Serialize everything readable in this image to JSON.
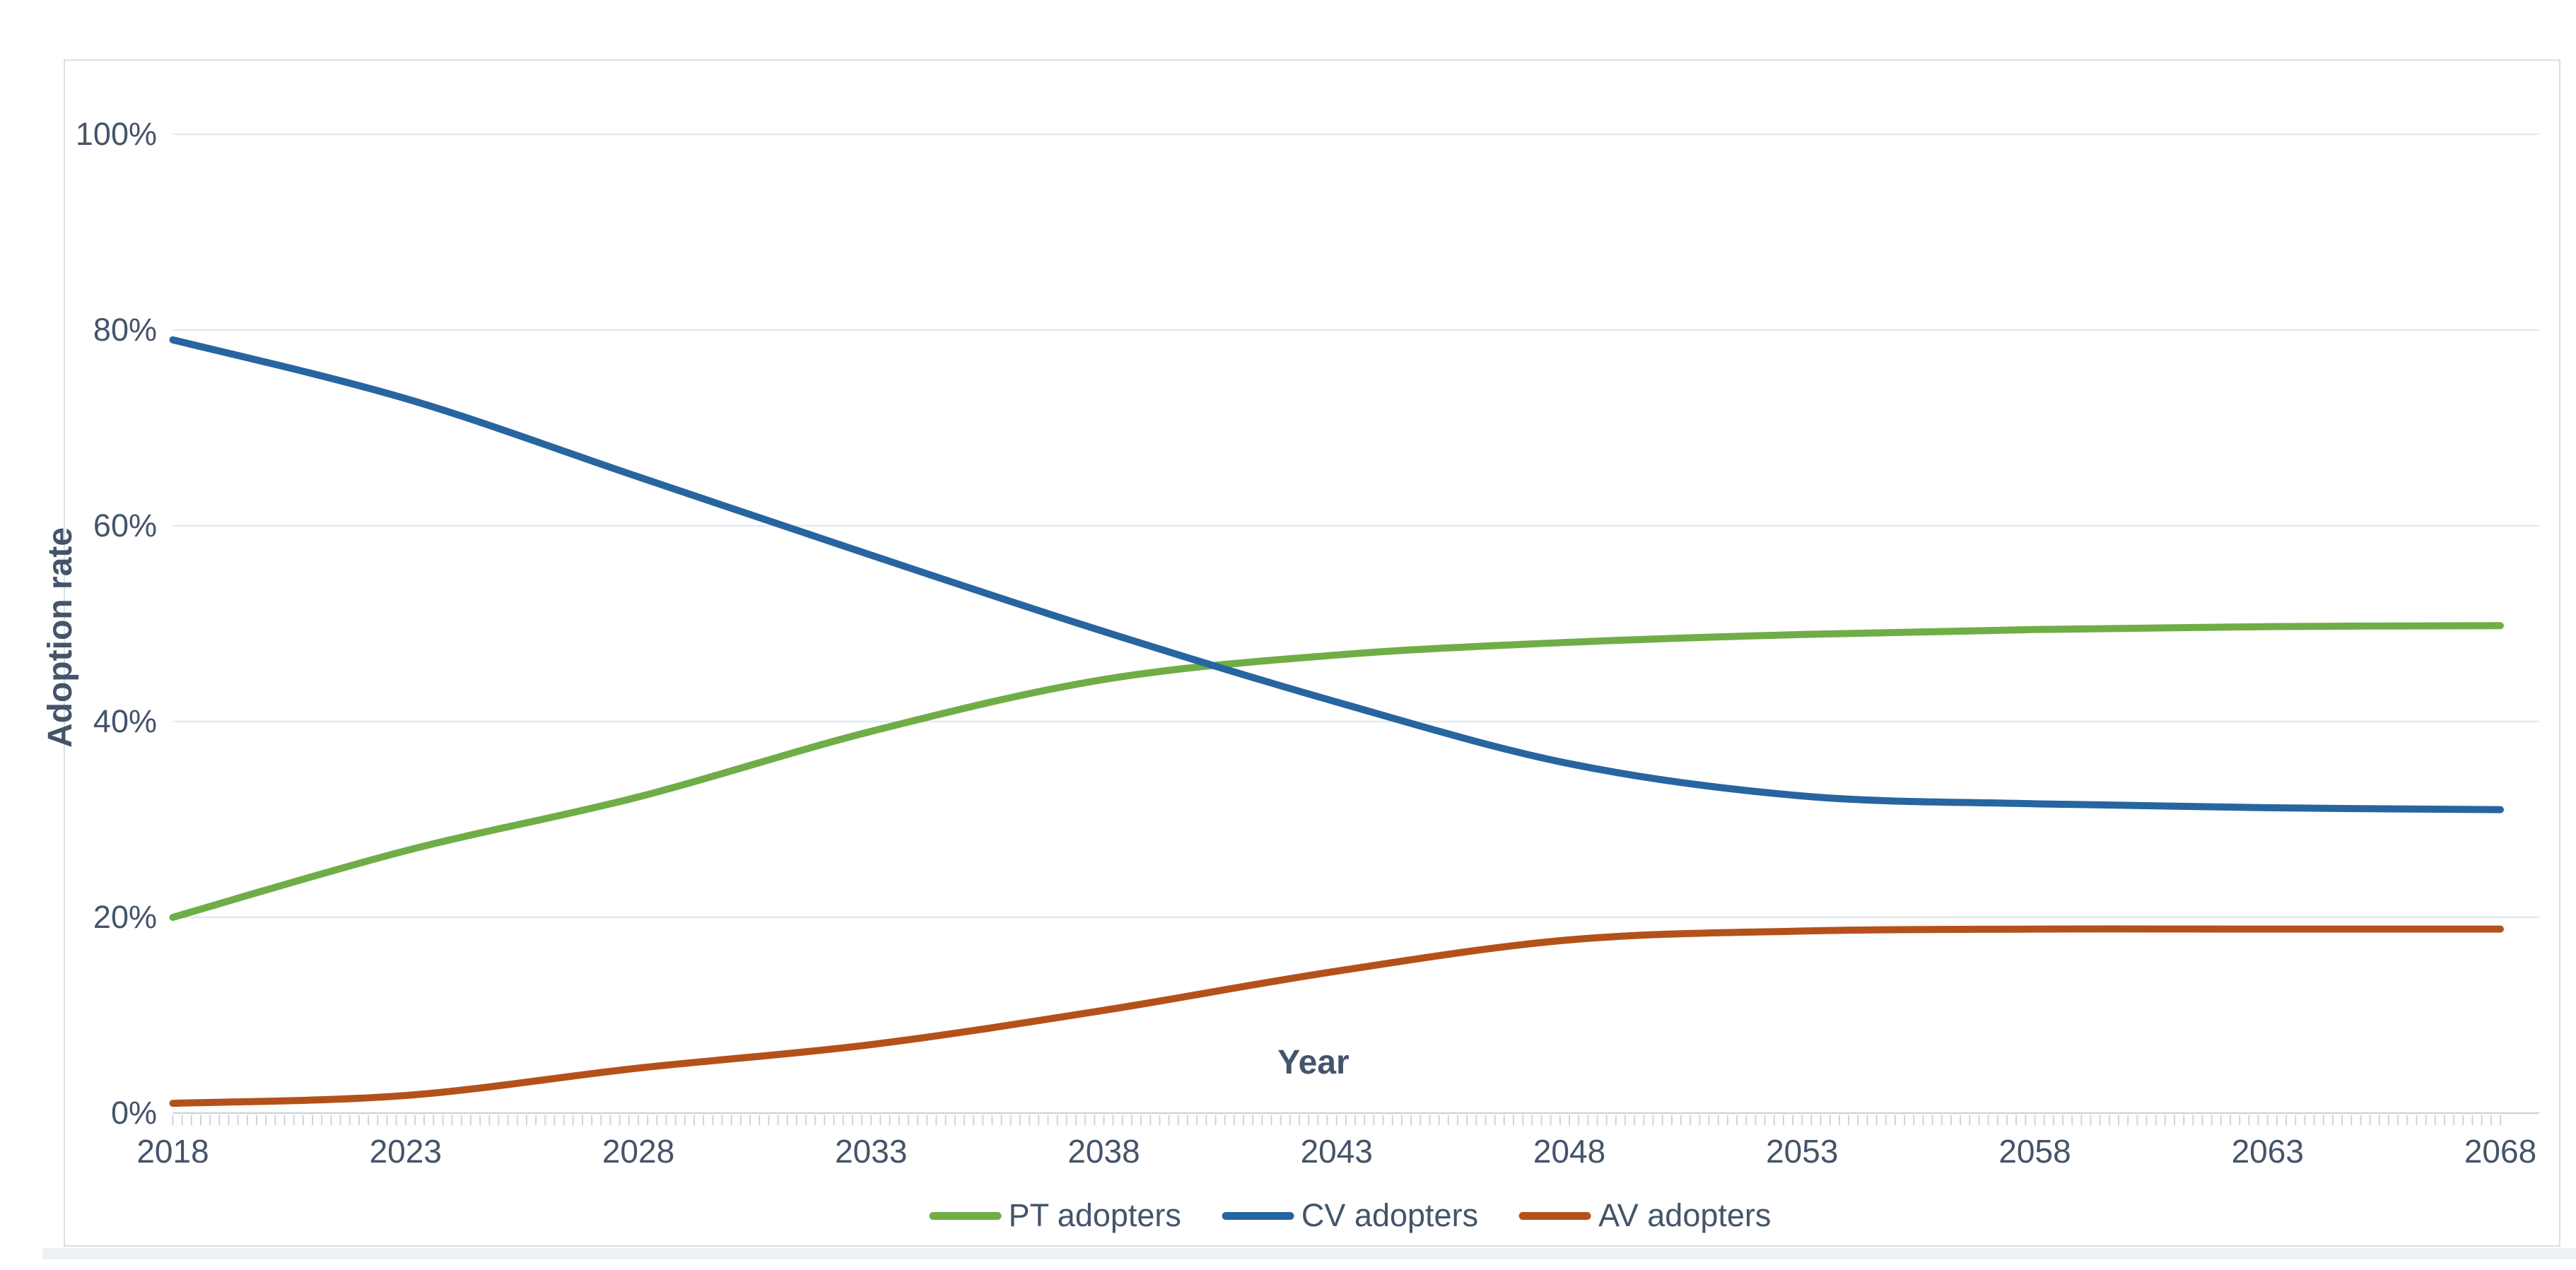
{
  "chart_data": {
    "type": "line",
    "title": "",
    "xlabel": "Year",
    "ylabel": "Adoption rate",
    "x": [
      2018,
      2023,
      2028,
      2033,
      2038,
      2043,
      2048,
      2053,
      2058,
      2063,
      2068
    ],
    "x_tick_labels": [
      "2018",
      "2023",
      "2028",
      "2033",
      "2038",
      "2043",
      "2048",
      "2053",
      "2058",
      "2063",
      "2068"
    ],
    "y_tick_values": [
      0,
      20,
      40,
      60,
      80,
      100
    ],
    "y_tick_labels": [
      "0%",
      "20%",
      "40%",
      "60%",
      "80%",
      "100%"
    ],
    "ylim": [
      0,
      100
    ],
    "xlim": [
      2018,
      2068
    ],
    "grid": "horizontal",
    "legend_position": "bottom",
    "series": [
      {
        "name": "PT adopters",
        "color": "#70AD47",
        "values": [
          20,
          26.8,
          32.3,
          39,
          44.3,
          46.8,
          48.1,
          48.9,
          49.4,
          49.7,
          49.8
        ]
      },
      {
        "name": "CV adopters",
        "color": "#2765A0",
        "values": [
          79,
          73,
          65,
          57,
          49.2,
          42,
          35.7,
          32.4,
          31.6,
          31.2,
          31
        ]
      },
      {
        "name": "AV adopters",
        "color": "#B4511B",
        "values": [
          1,
          1.8,
          4.6,
          7,
          10.5,
          14.5,
          17.7,
          18.6,
          18.8,
          18.8,
          18.8
        ]
      }
    ]
  },
  "colors": {
    "text": "#44546A",
    "gridline": "#e3e9ef",
    "axis_line": "#ccd5de",
    "tick_comb": "#ccd5de",
    "panel_border": "#d9dfe7",
    "bottom_band": "#edf1f5",
    "background": "#ffffff"
  }
}
